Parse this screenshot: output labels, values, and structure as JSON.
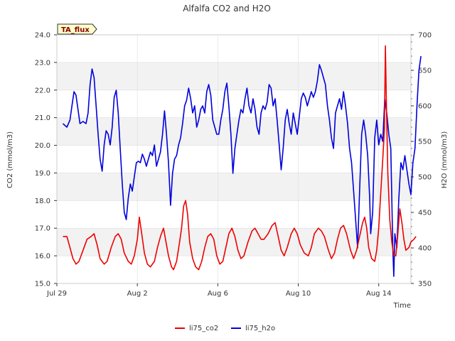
{
  "chart_data": {
    "type": "line",
    "title": "Alfalfa CO2 and H2O",
    "xlabel": "Time",
    "ylabel_left": "CO2 (mmol/m3)",
    "ylabel_right": "H2O (mmol/m3)",
    "badge": "TA_flux",
    "x_ticks": [
      {
        "label": "Jul 29",
        "day": 0
      },
      {
        "label": "Aug 2",
        "day": 4
      },
      {
        "label": "Aug 6",
        "day": 8
      },
      {
        "label": "Aug 10",
        "day": 12
      },
      {
        "label": "Aug 14",
        "day": 16
      }
    ],
    "xlim_days": [
      0,
      17.6
    ],
    "ylim_left": [
      15.0,
      24.0
    ],
    "left_ticks": [
      "15.0",
      "16.0",
      "17.0",
      "18.0",
      "19.0",
      "20.0",
      "21.0",
      "22.0",
      "23.0",
      "24.0"
    ],
    "ylim_right": [
      350,
      700
    ],
    "right_ticks": [
      "350",
      "400",
      "450",
      "500",
      "550",
      "600",
      "650",
      "700"
    ],
    "grid": true,
    "legend_position": "bottom-center",
    "series": [
      {
        "name": "li75_co2",
        "axis": "left",
        "color": "#ee0000",
        "points": [
          [
            0.3,
            16.7
          ],
          [
            0.5,
            16.7
          ],
          [
            0.65,
            16.3
          ],
          [
            0.8,
            15.9
          ],
          [
            0.95,
            15.7
          ],
          [
            1.1,
            15.8
          ],
          [
            1.3,
            16.2
          ],
          [
            1.5,
            16.6
          ],
          [
            1.7,
            16.7
          ],
          [
            1.85,
            16.8
          ],
          [
            2.0,
            16.4
          ],
          [
            2.15,
            15.9
          ],
          [
            2.35,
            15.7
          ],
          [
            2.5,
            15.8
          ],
          [
            2.7,
            16.3
          ],
          [
            2.9,
            16.7
          ],
          [
            3.05,
            16.8
          ],
          [
            3.2,
            16.6
          ],
          [
            3.35,
            16.1
          ],
          [
            3.55,
            15.8
          ],
          [
            3.7,
            15.7
          ],
          [
            3.85,
            16.0
          ],
          [
            4.0,
            16.6
          ],
          [
            4.1,
            17.4
          ],
          [
            4.2,
            16.9
          ],
          [
            4.35,
            16.1
          ],
          [
            4.5,
            15.7
          ],
          [
            4.65,
            15.6
          ],
          [
            4.85,
            15.8
          ],
          [
            5.0,
            16.3
          ],
          [
            5.15,
            16.7
          ],
          [
            5.3,
            17.0
          ],
          [
            5.4,
            16.6
          ],
          [
            5.55,
            16.0
          ],
          [
            5.7,
            15.6
          ],
          [
            5.8,
            15.5
          ],
          [
            5.95,
            15.8
          ],
          [
            6.1,
            16.5
          ],
          [
            6.2,
            17.0
          ],
          [
            6.3,
            17.8
          ],
          [
            6.4,
            18.0
          ],
          [
            6.5,
            17.5
          ],
          [
            6.55,
            17.0
          ],
          [
            6.6,
            16.5
          ],
          [
            6.75,
            15.9
          ],
          [
            6.9,
            15.6
          ],
          [
            7.05,
            15.5
          ],
          [
            7.2,
            15.8
          ],
          [
            7.35,
            16.3
          ],
          [
            7.5,
            16.7
          ],
          [
            7.65,
            16.8
          ],
          [
            7.8,
            16.6
          ],
          [
            7.95,
            16.0
          ],
          [
            8.1,
            15.7
          ],
          [
            8.25,
            15.8
          ],
          [
            8.4,
            16.3
          ],
          [
            8.55,
            16.8
          ],
          [
            8.7,
            17.0
          ],
          [
            8.85,
            16.7
          ],
          [
            9.0,
            16.2
          ],
          [
            9.15,
            15.9
          ],
          [
            9.3,
            16.0
          ],
          [
            9.5,
            16.5
          ],
          [
            9.7,
            16.9
          ],
          [
            9.85,
            17.0
          ],
          [
            10.0,
            16.8
          ],
          [
            10.15,
            16.6
          ],
          [
            10.3,
            16.6
          ],
          [
            10.5,
            16.8
          ],
          [
            10.7,
            17.1
          ],
          [
            10.85,
            17.2
          ],
          [
            11.0,
            16.7
          ],
          [
            11.15,
            16.2
          ],
          [
            11.3,
            16.0
          ],
          [
            11.45,
            16.3
          ],
          [
            11.65,
            16.8
          ],
          [
            11.8,
            17.0
          ],
          [
            11.95,
            16.8
          ],
          [
            12.1,
            16.4
          ],
          [
            12.3,
            16.1
          ],
          [
            12.5,
            16.0
          ],
          [
            12.65,
            16.3
          ],
          [
            12.8,
            16.8
          ],
          [
            13.0,
            17.0
          ],
          [
            13.15,
            16.9
          ],
          [
            13.3,
            16.7
          ],
          [
            13.5,
            16.2
          ],
          [
            13.65,
            15.9
          ],
          [
            13.8,
            16.1
          ],
          [
            13.95,
            16.6
          ],
          [
            14.1,
            17.0
          ],
          [
            14.25,
            17.1
          ],
          [
            14.4,
            16.8
          ],
          [
            14.6,
            16.2
          ],
          [
            14.75,
            15.9
          ],
          [
            14.9,
            16.2
          ],
          [
            15.05,
            16.7
          ],
          [
            15.2,
            17.2
          ],
          [
            15.3,
            17.4
          ],
          [
            15.4,
            17.0
          ],
          [
            15.5,
            16.3
          ],
          [
            15.65,
            15.9
          ],
          [
            15.8,
            15.8
          ],
          [
            15.9,
            16.2
          ],
          [
            16.0,
            17.0
          ],
          [
            16.1,
            18.3
          ],
          [
            16.2,
            19.5
          ],
          [
            16.28,
            20.6
          ],
          [
            16.33,
            23.6
          ],
          [
            16.38,
            21.5
          ],
          [
            16.45,
            19.0
          ],
          [
            16.55,
            17.3
          ],
          [
            16.65,
            16.5
          ],
          [
            16.75,
            16.0
          ],
          [
            16.85,
            16.0
          ],
          [
            16.95,
            16.8
          ],
          [
            17.05,
            17.7
          ],
          [
            17.15,
            17.2
          ],
          [
            17.25,
            16.6
          ],
          [
            17.35,
            16.2
          ],
          [
            17.5,
            16.3
          ],
          [
            17.6,
            16.5
          ],
          [
            17.75,
            16.6
          ],
          [
            17.85,
            16.7
          ]
        ]
      },
      {
        "name": "li75_h2o",
        "axis": "right",
        "color": "#0000dd",
        "points": [
          [
            0.3,
            575
          ],
          [
            0.5,
            570
          ],
          [
            0.65,
            580
          ],
          [
            0.75,
            600
          ],
          [
            0.85,
            620
          ],
          [
            0.95,
            615
          ],
          [
            1.05,
            595
          ],
          [
            1.15,
            575
          ],
          [
            1.3,
            578
          ],
          [
            1.45,
            575
          ],
          [
            1.55,
            590
          ],
          [
            1.65,
            630
          ],
          [
            1.75,
            652
          ],
          [
            1.85,
            640
          ],
          [
            1.95,
            600
          ],
          [
            2.05,
            560
          ],
          [
            2.15,
            525
          ],
          [
            2.25,
            508
          ],
          [
            2.35,
            545
          ],
          [
            2.45,
            565
          ],
          [
            2.55,
            560
          ],
          [
            2.65,
            545
          ],
          [
            2.75,
            570
          ],
          [
            2.85,
            612
          ],
          [
            2.95,
            622
          ],
          [
            3.05,
            590
          ],
          [
            3.15,
            540
          ],
          [
            3.25,
            490
          ],
          [
            3.35,
            450
          ],
          [
            3.45,
            440
          ],
          [
            3.55,
            470
          ],
          [
            3.65,
            490
          ],
          [
            3.75,
            480
          ],
          [
            3.85,
            500
          ],
          [
            3.95,
            520
          ],
          [
            4.05,
            522
          ],
          [
            4.15,
            520
          ],
          [
            4.25,
            532
          ],
          [
            4.35,
            525
          ],
          [
            4.45,
            515
          ],
          [
            4.55,
            525
          ],
          [
            4.65,
            535
          ],
          [
            4.75,
            530
          ],
          [
            4.85,
            545
          ],
          [
            4.95,
            515
          ],
          [
            5.05,
            525
          ],
          [
            5.15,
            535
          ],
          [
            5.25,
            560
          ],
          [
            5.35,
            593
          ],
          [
            5.45,
            560
          ],
          [
            5.55,
            520
          ],
          [
            5.65,
            460
          ],
          [
            5.75,
            505
          ],
          [
            5.85,
            525
          ],
          [
            5.95,
            530
          ],
          [
            6.05,
            545
          ],
          [
            6.15,
            555
          ],
          [
            6.25,
            575
          ],
          [
            6.35,
            600
          ],
          [
            6.45,
            608
          ],
          [
            6.55,
            625
          ],
          [
            6.65,
            610
          ],
          [
            6.75,
            590
          ],
          [
            6.85,
            600
          ],
          [
            6.95,
            570
          ],
          [
            7.05,
            580
          ],
          [
            7.15,
            595
          ],
          [
            7.25,
            600
          ],
          [
            7.35,
            590
          ],
          [
            7.45,
            620
          ],
          [
            7.55,
            630
          ],
          [
            7.65,
            615
          ],
          [
            7.75,
            580
          ],
          [
            7.85,
            570
          ],
          [
            7.95,
            560
          ],
          [
            8.05,
            560
          ],
          [
            8.15,
            580
          ],
          [
            8.25,
            595
          ],
          [
            8.35,
            620
          ],
          [
            8.45,
            632
          ],
          [
            8.55,
            600
          ],
          [
            8.65,
            560
          ],
          [
            8.75,
            505
          ],
          [
            8.85,
            540
          ],
          [
            8.95,
            560
          ],
          [
            9.05,
            580
          ],
          [
            9.15,
            595
          ],
          [
            9.25,
            590
          ],
          [
            9.35,
            610
          ],
          [
            9.45,
            625
          ],
          [
            9.55,
            600
          ],
          [
            9.65,
            590
          ],
          [
            9.75,
            610
          ],
          [
            9.85,
            595
          ],
          [
            9.95,
            570
          ],
          [
            10.05,
            560
          ],
          [
            10.15,
            590
          ],
          [
            10.25,
            600
          ],
          [
            10.35,
            595
          ],
          [
            10.45,
            605
          ],
          [
            10.55,
            630
          ],
          [
            10.65,
            625
          ],
          [
            10.75,
            600
          ],
          [
            10.85,
            610
          ],
          [
            10.95,
            580
          ],
          [
            11.05,
            545
          ],
          [
            11.15,
            510
          ],
          [
            11.25,
            540
          ],
          [
            11.35,
            580
          ],
          [
            11.45,
            595
          ],
          [
            11.55,
            575
          ],
          [
            11.65,
            560
          ],
          [
            11.75,
            590
          ],
          [
            11.85,
            575
          ],
          [
            11.95,
            560
          ],
          [
            12.05,
            585
          ],
          [
            12.15,
            610
          ],
          [
            12.25,
            618
          ],
          [
            12.35,
            612
          ],
          [
            12.45,
            600
          ],
          [
            12.55,
            610
          ],
          [
            12.65,
            620
          ],
          [
            12.75,
            612
          ],
          [
            12.85,
            620
          ],
          [
            12.95,
            635
          ],
          [
            13.05,
            658
          ],
          [
            13.15,
            650
          ],
          [
            13.25,
            640
          ],
          [
            13.35,
            630
          ],
          [
            13.45,
            600
          ],
          [
            13.55,
            580
          ],
          [
            13.65,
            555
          ],
          [
            13.75,
            540
          ],
          [
            13.85,
            590
          ],
          [
            13.95,
            600
          ],
          [
            14.05,
            610
          ],
          [
            14.15,
            595
          ],
          [
            14.25,
            620
          ],
          [
            14.35,
            600
          ],
          [
            14.45,
            575
          ],
          [
            14.55,
            540
          ],
          [
            14.65,
            520
          ],
          [
            14.75,
            480
          ],
          [
            14.85,
            440
          ],
          [
            14.95,
            400
          ],
          [
            15.05,
            480
          ],
          [
            15.15,
            560
          ],
          [
            15.25,
            580
          ],
          [
            15.35,
            560
          ],
          [
            15.45,
            530
          ],
          [
            15.55,
            470
          ],
          [
            15.6,
            420
          ],
          [
            15.7,
            450
          ],
          [
            15.8,
            555
          ],
          [
            15.9,
            580
          ],
          [
            16.0,
            545
          ],
          [
            16.1,
            560
          ],
          [
            16.2,
            550
          ],
          [
            16.3,
            610
          ],
          [
            16.4,
            590
          ],
          [
            16.5,
            560
          ],
          [
            16.6,
            540
          ],
          [
            16.65,
            470
          ],
          [
            16.7,
            400
          ],
          [
            16.75,
            360
          ],
          [
            16.8,
            420
          ],
          [
            16.9,
            400
          ],
          [
            17.0,
            470
          ],
          [
            17.1,
            520
          ],
          [
            17.2,
            510
          ],
          [
            17.3,
            530
          ],
          [
            17.4,
            510
          ],
          [
            17.5,
            490
          ],
          [
            17.6,
            475
          ],
          [
            17.7,
            520
          ],
          [
            17.8,
            540
          ],
          [
            17.9,
            600
          ],
          [
            18.0,
            650
          ],
          [
            18.05,
            660
          ],
          [
            18.1,
            670
          ]
        ]
      }
    ]
  }
}
